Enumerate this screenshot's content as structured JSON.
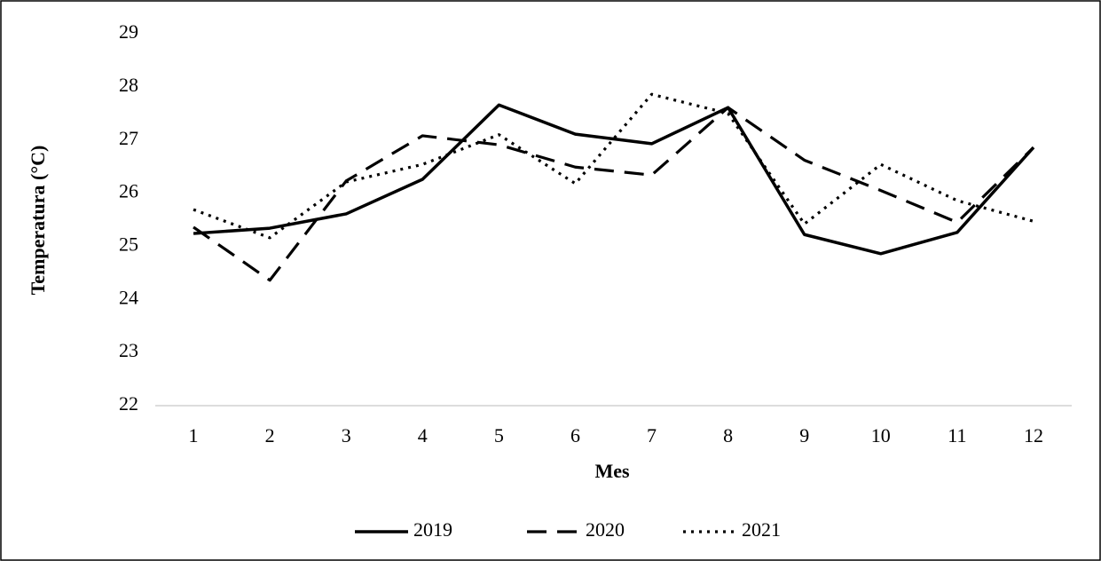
{
  "chart_data": {
    "type": "line",
    "x_label": "Mes",
    "y_label": "Temperatura (°C)",
    "categories": [
      "1",
      "2",
      "3",
      "4",
      "5",
      "6",
      "7",
      "8",
      "9",
      "10",
      "11",
      "12"
    ],
    "series": [
      {
        "name": "2019",
        "color": "#000000",
        "line_style": "solid",
        "values": [
          25.24,
          25.34,
          25.61,
          26.26,
          27.66,
          27.11,
          26.93,
          27.61,
          25.22,
          24.86,
          25.26,
          26.86
        ]
      },
      {
        "name": "2020",
        "color": "#000000",
        "line_style": "dashed",
        "values": [
          25.36,
          24.36,
          26.23,
          27.08,
          26.91,
          26.49,
          26.34,
          27.61,
          26.62,
          26.05,
          25.45,
          26.86
        ]
      },
      {
        "name": "2021",
        "color": "#000000",
        "line_style": "dotted",
        "values": [
          25.69,
          25.16,
          26.21,
          26.54,
          27.1,
          26.18,
          27.86,
          27.5,
          25.42,
          26.54,
          25.86,
          25.47
        ]
      }
    ],
    "ylim": [
      22,
      29
    ],
    "yticks": [
      22,
      23,
      24,
      25,
      26,
      27,
      28,
      29
    ],
    "grid": false,
    "legend": "bottom"
  }
}
